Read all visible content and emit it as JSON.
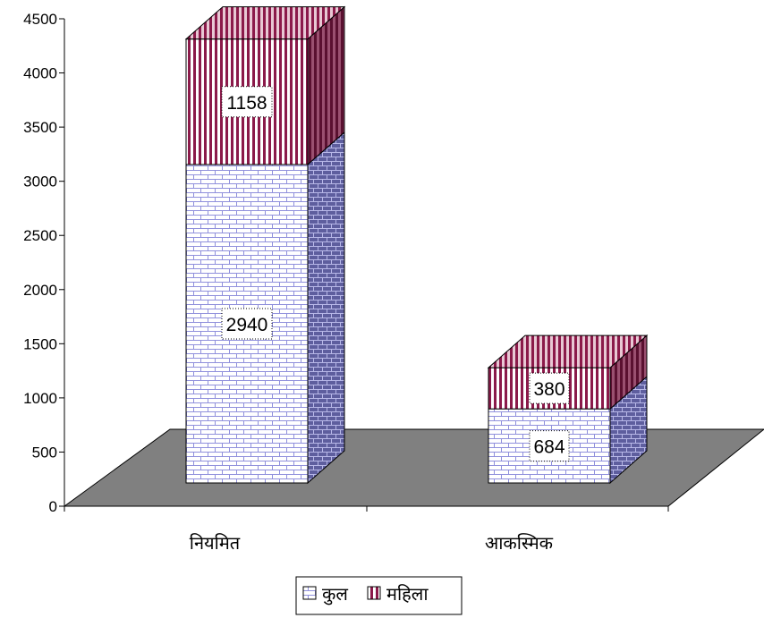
{
  "chart_data": {
    "type": "bar",
    "stacked": true,
    "three_d": true,
    "categories": [
      "नियमित",
      "आकस्मिक"
    ],
    "series": [
      {
        "name": "कुल",
        "values": [
          2940,
          684
        ],
        "pattern": "brick",
        "color": "#8a8ad8"
      },
      {
        "name": "महिला",
        "values": [
          1158,
          380
        ],
        "pattern": "vertical-stripes",
        "color": "#8b1a4a"
      }
    ],
    "data_labels": [
      [
        "2940",
        "684"
      ],
      [
        "1158",
        "380"
      ]
    ],
    "ylim": [
      0,
      4500
    ],
    "yticks": [
      "0",
      "500",
      "1000",
      "1500",
      "2000",
      "2500",
      "3000",
      "3500",
      "4000",
      "4500"
    ],
    "xlabel": "",
    "ylabel": "",
    "title": "",
    "legend_position": "bottom",
    "floor_color": "#808080",
    "grid": false
  }
}
